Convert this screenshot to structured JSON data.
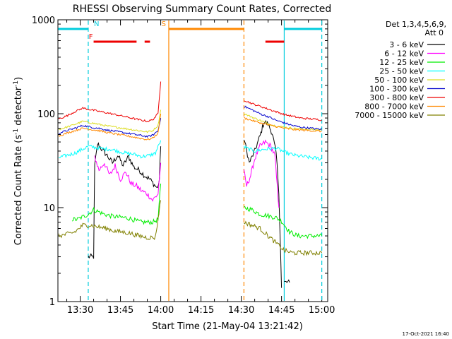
{
  "chart_data": {
    "type": "line",
    "title": "RHESSI Observing Summary Count Rates, Corrected",
    "xlabel": "Start Time (21-May-04 13:21:42)",
    "ylabel": "Corrected Count Rate (s⁻¹ detector⁻¹)",
    "ylabel_main": "Corrected Count Rate (s",
    "ylabel_mid": " detector",
    "ylabel_end": ")",
    "ylabel_sup": "-1",
    "x_tick_labels": [
      "13:30",
      "13:45",
      "14:00",
      "14:15",
      "14:30",
      "14:45",
      "15:00"
    ],
    "x_tick_minutes": [
      810,
      825,
      840,
      855,
      870,
      885,
      900
    ],
    "xlim_minutes": [
      801.7,
      902.2
    ],
    "y_scale": "log",
    "ylim": [
      1,
      1000
    ],
    "y_tick_labels": [
      "1",
      "10",
      "100",
      "1000"
    ],
    "y_tick_values": [
      1,
      10,
      100,
      1000
    ],
    "legend": {
      "placement": "top-right",
      "header_lines": [
        "Det 1,3,4,5,6,9,",
        "Att 0"
      ]
    },
    "series": [
      {
        "name": "3 - 6 keV",
        "color": "#000000",
        "x": [
          813.0,
          815.0,
          815.4,
          816.5,
          818.0,
          820.0,
          822.0,
          824.0,
          826.0,
          828.0,
          830.0,
          832.0,
          834.0,
          836.0,
          838.0,
          838.8,
          839.5,
          840.0
        ],
        "y": [
          3,
          3,
          28,
          48,
          42,
          36,
          30,
          36,
          28,
          35,
          27,
          25,
          22,
          20,
          17,
          16,
          20,
          45
        ],
        "x2": [
          871.0,
          873.0,
          875.0,
          877.0,
          878.5,
          880.0,
          881.5,
          883.0,
          884.0,
          885.0
        ],
        "y2": [
          55,
          30,
          40,
          58,
          82,
          78,
          62,
          38,
          15,
          1.4
        ],
        "x3": [
          886.0,
          888.0
        ],
        "y3": [
          1.6,
          1.6
        ]
      },
      {
        "name": "6 - 12 keV",
        "color": "#ff00ff",
        "x": [
          815.4,
          817.0,
          819.0,
          821.0,
          823.0,
          825.0,
          827.0,
          829.0,
          831.0,
          833.0,
          835.0,
          837.0,
          839.0,
          840.0
        ],
        "y": [
          35,
          25,
          30,
          22,
          28,
          20,
          24,
          18,
          17,
          15,
          14,
          12,
          14,
          30
        ],
        "x2": [
          871.0,
          872.0,
          873.5,
          875.0,
          877.0,
          879.0,
          881.0,
          882.5,
          884.0
        ],
        "y2": [
          24,
          17,
          22,
          33,
          45,
          50,
          45,
          36,
          10
        ]
      },
      {
        "name": "12 - 25 keV",
        "color": "#00ee00",
        "x": [
          807.0,
          809.0,
          811.0,
          813.0,
          815.0,
          817.0,
          819.0,
          821.0,
          823.0,
          825.0,
          827.0,
          829.0,
          831.0,
          833.0,
          835.0,
          837.0,
          839.0,
          840.0
        ],
        "y": [
          7.5,
          7.5,
          8,
          8.5,
          9.5,
          9,
          8.5,
          8.2,
          8.0,
          7.9,
          7.8,
          7.6,
          7.2,
          7.0,
          7.0,
          7.0,
          7.5,
          18
        ],
        "x2": [
          871.0,
          874.0,
          877.0,
          880.0,
          883.0,
          885.0,
          888.0,
          891.0,
          894.0,
          897.0,
          900.0
        ],
        "y2": [
          10,
          9.5,
          8.5,
          8.2,
          7.8,
          7.2,
          5.5,
          5.0,
          5.0,
          5.0,
          5.0
        ]
      },
      {
        "name": "25 - 50 keV",
        "color": "#00ffff",
        "x": [
          802.0,
          805.0,
          808.0,
          811.0,
          813.0,
          815.0,
          817.0,
          819.0,
          821.0,
          824.0,
          827.0,
          830.0,
          833.0,
          836.0,
          838.0,
          840.0
        ],
        "y": [
          34,
          36,
          38,
          42,
          45,
          44,
          43,
          42,
          42,
          40,
          38,
          37,
          35,
          36,
          38,
          52
        ],
        "x2": [
          871.0,
          875.0,
          879.0,
          883.0,
          887.0,
          890.0,
          893.0,
          896.0,
          900.0
        ],
        "y2": [
          44,
          40,
          42,
          43,
          38,
          36,
          35,
          34,
          33
        ]
      },
      {
        "name": "50 - 100 keV",
        "color": "#dddd22",
        "x": [
          802.0,
          805.0,
          808.0,
          811.0,
          814.0,
          817.0,
          820.0,
          823.0,
          826.0,
          829.0,
          832.0,
          835.0,
          837.0,
          839.0,
          840.0
        ],
        "y": [
          68,
          72,
          77,
          83,
          80,
          77,
          74,
          72,
          70,
          68,
          66,
          64,
          66,
          75,
          110
        ],
        "x2": [
          871.0,
          874.0,
          877.0,
          880.0,
          883.0,
          886.0,
          889.0,
          892.0,
          896.0,
          900.0
        ],
        "y2": [
          100,
          92,
          85,
          78,
          74,
          72,
          70,
          69,
          68,
          67
        ]
      },
      {
        "name": "100 - 300 keV",
        "color": "#0000cc",
        "x": [
          802.0,
          805.0,
          808.0,
          811.0,
          814.0,
          817.0,
          820.0,
          823.0,
          826.0,
          829.0,
          832.0,
          835.0,
          837.0,
          839.0,
          840.0
        ],
        "y": [
          62,
          66,
          70,
          75,
          72,
          70,
          67,
          65,
          63,
          61,
          59,
          57,
          59,
          66,
          90
        ],
        "x2": [
          871.0,
          874.0,
          877.0,
          880.0,
          883.0,
          886.0,
          889.0,
          892.0,
          896.0,
          900.0
        ],
        "y2": [
          120,
          110,
          100,
          93,
          85,
          80,
          75,
          72,
          70,
          68
        ]
      },
      {
        "name": "300 - 800 keV",
        "color": "#ee0000",
        "x": [
          802.0,
          805.0,
          808.0,
          811.0,
          814.0,
          817.0,
          820.0,
          823.0,
          826.0,
          829.0,
          832.0,
          835.0,
          837.0,
          839.0,
          840.0
        ],
        "y": [
          88,
          95,
          105,
          115,
          110,
          106,
          102,
          98,
          94,
          90,
          86,
          83,
          86,
          100,
          220
        ],
        "x2": [
          871.0,
          874.0,
          877.0,
          880.0,
          883.0,
          886.0,
          889.0,
          892.0,
          896.0,
          900.0
        ],
        "y2": [
          140,
          128,
          120,
          112,
          105,
          98,
          94,
          90,
          88,
          86
        ]
      },
      {
        "name": "800 - 7000 keV",
        "color": "#ff8800",
        "x": [
          802.0,
          805.0,
          808.0,
          811.0,
          814.0,
          817.0,
          820.0,
          823.0,
          826.0,
          829.0,
          832.0,
          835.0,
          837.0,
          839.0,
          840.0
        ],
        "y": [
          58,
          62,
          66,
          70,
          68,
          66,
          63,
          61,
          59,
          57,
          55,
          53,
          55,
          62,
          100
        ],
        "x2": [
          871.0,
          874.0,
          877.0,
          880.0,
          883.0,
          886.0,
          889.0,
          892.0,
          896.0,
          900.0
        ],
        "y2": [
          90,
          85,
          80,
          76,
          73,
          70,
          68,
          67,
          66,
          65
        ]
      },
      {
        "name": "7000 - 15000 keV",
        "color": "#808000",
        "x": [
          802.0,
          805.0,
          808.0,
          811.0,
          814.0,
          817.0,
          820.0,
          823.0,
          826.0,
          829.0,
          832.0,
          835.0,
          838.0,
          840.0
        ],
        "y": [
          5.0,
          5.2,
          5.5,
          6.5,
          6.5,
          6.2,
          6.0,
          5.6,
          5.5,
          5.3,
          5.0,
          4.8,
          4.8,
          12
        ],
        "x2": [
          871.0,
          874.0,
          877.0,
          880.0,
          883.0,
          886.0,
          889.0,
          892.0,
          896.0,
          900.0
        ],
        "y2": [
          7,
          6.5,
          6.0,
          5.0,
          4.2,
          3.5,
          3.3,
          3.3,
          3.3,
          3.3
        ]
      }
    ],
    "flags": [
      {
        "label": "N",
        "color": "#00ccdd",
        "x_bars": [
          [
            801.8,
            813.0
          ],
          [
            886.0,
            900.0
          ]
        ],
        "level": "top"
      },
      {
        "label": "F",
        "color": "#ee0000",
        "x_bars": [
          [
            815.0,
            831.0
          ],
          [
            834.0,
            836.0
          ],
          [
            879.0,
            886.0
          ]
        ],
        "level": "upper"
      },
      {
        "label": "S",
        "color": "#ff8800",
        "x_bars": [
          [
            843.0,
            871.0
          ]
        ],
        "level": "top"
      }
    ],
    "vertical_markers": [
      {
        "x": 813.0,
        "color": "#00ccdd",
        "style": "dashed"
      },
      {
        "x": 843.0,
        "color": "#ff8800",
        "style": "solid"
      },
      {
        "x": 871.0,
        "color": "#ff8800",
        "style": "dashed"
      },
      {
        "x": 886.0,
        "color": "#00ccdd",
        "style": "solid"
      },
      {
        "x": 900.0,
        "color": "#00ccdd",
        "style": "dashed"
      }
    ]
  },
  "footer": {
    "timestamp": "17-Oct-2021 16:40"
  }
}
